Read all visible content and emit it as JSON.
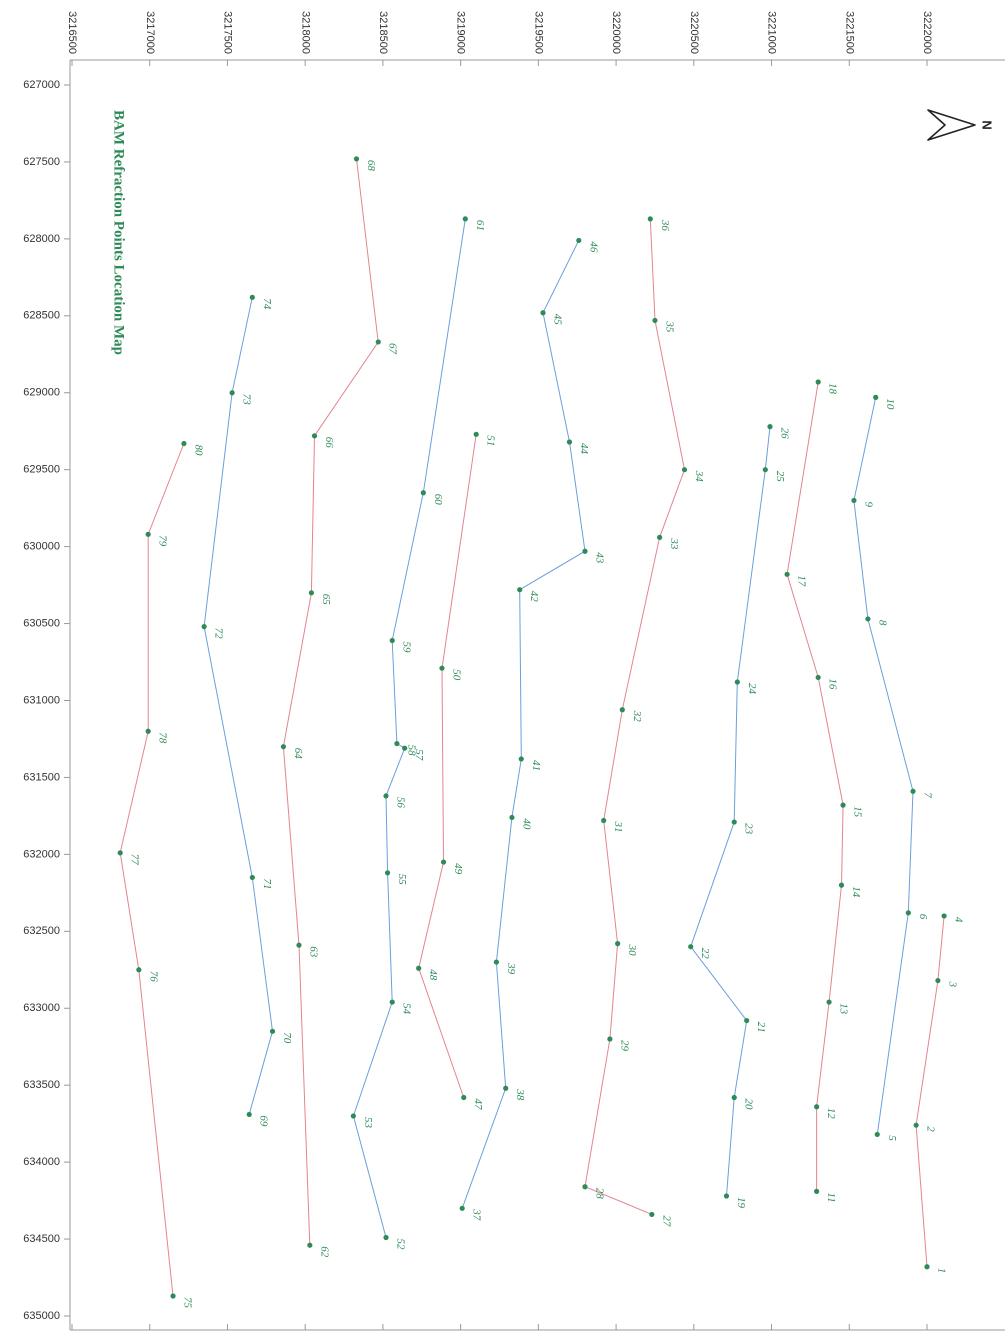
{
  "chart_data": {
    "type": "line",
    "title": "BAM  Refraction Points Location Map",
    "north_label": "N",
    "x_axis_ticks": [
      627000,
      627500,
      628000,
      628500,
      629000,
      629500,
      630000,
      630500,
      631000,
      631500,
      632000,
      632500,
      633000,
      633500,
      634000,
      634500,
      635000
    ],
    "y_axis_ticks": [
      3216500,
      3217000,
      3217500,
      3218000,
      3218500,
      3219000,
      3219500,
      3220000,
      3220500,
      3221000,
      3221500,
      3222000
    ],
    "xlim": [
      627000,
      635000
    ],
    "ylim": [
      3216500,
      3222500
    ],
    "grid": false,
    "colors": {
      "blue_line": "#6a9fdc",
      "red_line": "#e4848f",
      "point": "#2e8b57",
      "label": "#2e8b57"
    },
    "series": [
      {
        "color": "red",
        "points": [
          {
            "id": "1",
            "x": 634680,
            "y": 3222000
          },
          {
            "id": "2",
            "x": 633760,
            "y": 3221930
          },
          {
            "id": "3",
            "x": 632820,
            "y": 3222070
          },
          {
            "id": "4",
            "x": 632400,
            "y": 3222110
          }
        ]
      },
      {
        "color": "blue",
        "points": [
          {
            "id": "5",
            "x": 633820,
            "y": 3221680
          },
          {
            "id": "6",
            "x": 632380,
            "y": 3221880
          },
          {
            "id": "7",
            "x": 631590,
            "y": 3221910
          },
          {
            "id": "8",
            "x": 630470,
            "y": 3221620
          },
          {
            "id": "9",
            "x": 629700,
            "y": 3221530
          },
          {
            "id": "10",
            "x": 629030,
            "y": 3221670
          }
        ]
      },
      {
        "color": "red",
        "points": [
          {
            "id": "11",
            "x": 634190,
            "y": 3221290
          },
          {
            "id": "12",
            "x": 633640,
            "y": 3221290
          },
          {
            "id": "13",
            "x": 632960,
            "y": 3221370
          },
          {
            "id": "14",
            "x": 632200,
            "y": 3221450
          },
          {
            "id": "15",
            "x": 631680,
            "y": 3221460
          },
          {
            "id": "16",
            "x": 630850,
            "y": 3221300
          },
          {
            "id": "17",
            "x": 630180,
            "y": 3221100
          },
          {
            "id": "18",
            "x": 628930,
            "y": 3221300
          }
        ]
      },
      {
        "color": "blue",
        "points": [
          {
            "id": "19",
            "x": 634220,
            "y": 3220710
          },
          {
            "id": "20",
            "x": 633580,
            "y": 3220760
          },
          {
            "id": "21",
            "x": 633080,
            "y": 3220840
          },
          {
            "id": "22",
            "x": 632600,
            "y": 3220480
          },
          {
            "id": "23",
            "x": 631790,
            "y": 3220760
          },
          {
            "id": "24",
            "x": 630880,
            "y": 3220780
          },
          {
            "id": "25",
            "x": 629500,
            "y": 3220960
          },
          {
            "id": "26",
            "x": 629220,
            "y": 3220990
          }
        ]
      },
      {
        "color": "red",
        "points": [
          {
            "id": "27",
            "x": 634340,
            "y": 3220230
          },
          {
            "id": "28",
            "x": 634160,
            "y": 3219800
          },
          {
            "id": "29",
            "x": 633200,
            "y": 3219960
          },
          {
            "id": "30",
            "x": 632580,
            "y": 3220010
          },
          {
            "id": "31",
            "x": 631780,
            "y": 3219920
          },
          {
            "id": "32",
            "x": 631060,
            "y": 3220040
          },
          {
            "id": "33",
            "x": 629940,
            "y": 3220280
          },
          {
            "id": "34",
            "x": 629500,
            "y": 3220440
          },
          {
            "id": "35",
            "x": 628530,
            "y": 3220250
          },
          {
            "id": "36",
            "x": 627870,
            "y": 3220220
          }
        ]
      },
      {
        "color": "blue",
        "points": [
          {
            "id": "37",
            "x": 634300,
            "y": 3219010
          },
          {
            "id": "38",
            "x": 633520,
            "y": 3219290
          },
          {
            "id": "39",
            "x": 632700,
            "y": 3219230
          },
          {
            "id": "40",
            "x": 631760,
            "y": 3219330
          },
          {
            "id": "41",
            "x": 631380,
            "y": 3219390
          },
          {
            "id": "42",
            "x": 630280,
            "y": 3219380
          },
          {
            "id": "43",
            "x": 630030,
            "y": 3219800
          },
          {
            "id": "44",
            "x": 629320,
            "y": 3219700
          },
          {
            "id": "45",
            "x": 628480,
            "y": 3219530
          },
          {
            "id": "46",
            "x": 628010,
            "y": 3219760
          }
        ]
      },
      {
        "color": "red",
        "points": [
          {
            "id": "47",
            "x": 633580,
            "y": 3219020
          },
          {
            "id": "48",
            "x": 632740,
            "y": 3218730
          },
          {
            "id": "49",
            "x": 632050,
            "y": 3218890
          },
          {
            "id": "50",
            "x": 630790,
            "y": 3218880
          },
          {
            "id": "51",
            "x": 629270,
            "y": 3219100
          }
        ]
      },
      {
        "color": "blue",
        "points": [
          {
            "id": "52",
            "x": 634490,
            "y": 3218520
          },
          {
            "id": "53",
            "x": 633700,
            "y": 3218310
          },
          {
            "id": "54",
            "x": 632960,
            "y": 3218560
          },
          {
            "id": "55",
            "x": 632120,
            "y": 3218530
          },
          {
            "id": "56",
            "x": 631620,
            "y": 3218520
          },
          {
            "id": "57",
            "x": 631310,
            "y": 3218640
          },
          {
            "id": "58",
            "x": 631280,
            "y": 3218590
          },
          {
            "id": "59",
            "x": 630610,
            "y": 3218560
          },
          {
            "id": "60",
            "x": 629650,
            "y": 3218760
          },
          {
            "id": "61",
            "x": 627870,
            "y": 3219030
          }
        ]
      },
      {
        "color": "red",
        "points": [
          {
            "id": "62",
            "x": 634540,
            "y": 3218030
          },
          {
            "id": "63",
            "x": 632590,
            "y": 3217960
          },
          {
            "id": "64",
            "x": 631300,
            "y": 3217860
          },
          {
            "id": "65",
            "x": 630300,
            "y": 3218040
          },
          {
            "id": "66",
            "x": 629280,
            "y": 3218060
          },
          {
            "id": "67",
            "x": 628670,
            "y": 3218470
          },
          {
            "id": "68",
            "x": 627480,
            "y": 3218330
          }
        ]
      },
      {
        "color": "blue",
        "points": [
          {
            "id": "69",
            "x": 633690,
            "y": 3217640
          },
          {
            "id": "70",
            "x": 633150,
            "y": 3217790
          },
          {
            "id": "71",
            "x": 632150,
            "y": 3217660
          },
          {
            "id": "72",
            "x": 630520,
            "y": 3217350
          },
          {
            "id": "73",
            "x": 629000,
            "y": 3217530
          },
          {
            "id": "74",
            "x": 628380,
            "y": 3217660
          }
        ]
      },
      {
        "color": "red",
        "points": [
          {
            "id": "75",
            "x": 634870,
            "y": 3217150
          },
          {
            "id": "76",
            "x": 632750,
            "y": 3216930
          },
          {
            "id": "77",
            "x": 631990,
            "y": 3216810
          },
          {
            "id": "78",
            "x": 631200,
            "y": 3216990
          },
          {
            "id": "79",
            "x": 629920,
            "y": 3216990
          },
          {
            "id": "80",
            "x": 629330,
            "y": 3217220
          }
        ]
      }
    ]
  }
}
